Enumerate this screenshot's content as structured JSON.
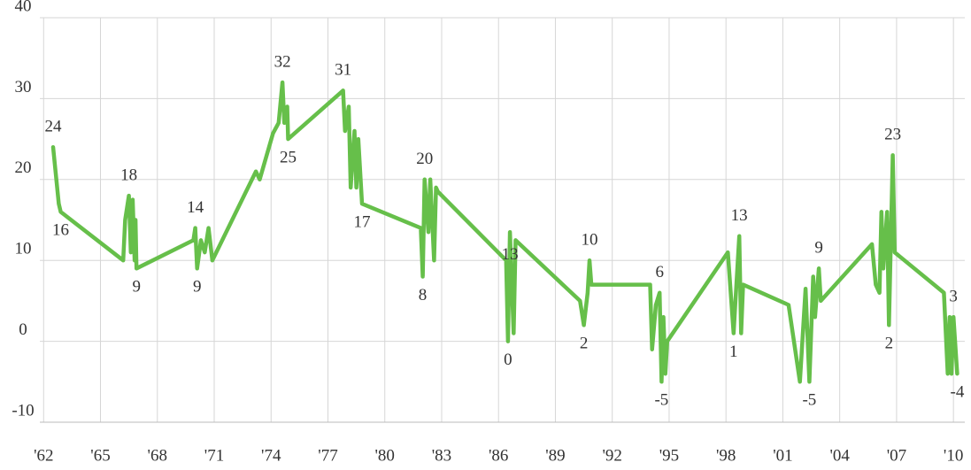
{
  "chart_data": {
    "type": "line",
    "color": "#66bf4a",
    "grid": true,
    "xlim": [
      1961.8,
      2010.6
    ],
    "ylim": [
      -10,
      40
    ],
    "yticks": [
      -10,
      0,
      10,
      20,
      30,
      40
    ],
    "xticks": [
      {
        "value": 1962,
        "label": "'62"
      },
      {
        "value": 1965,
        "label": "'65"
      },
      {
        "value": 1968,
        "label": "'68"
      },
      {
        "value": 1971,
        "label": "'71"
      },
      {
        "value": 1974,
        "label": "'74"
      },
      {
        "value": 1977,
        "label": "'77"
      },
      {
        "value": 1980,
        "label": "'80"
      },
      {
        "value": 1983,
        "label": "'83"
      },
      {
        "value": 1986,
        "label": "'86"
      },
      {
        "value": 1989,
        "label": "'89"
      },
      {
        "value": 1992,
        "label": "'92"
      },
      {
        "value": 1995,
        "label": "'95"
      },
      {
        "value": 1998,
        "label": "'98"
      },
      {
        "value": 2001,
        "label": "'01"
      },
      {
        "value": 2004,
        "label": "'04"
      },
      {
        "value": 2007,
        "label": "'07"
      },
      {
        "value": 2010,
        "label": "'10"
      }
    ],
    "x": [
      1962.5,
      1962.8,
      1962.9,
      1966.2,
      1966.3,
      1966.5,
      1966.6,
      1966.7,
      1966.8,
      1966.85,
      1966.9,
      1969.9,
      1970.0,
      1970.1,
      1970.3,
      1970.5,
      1970.7,
      1970.9,
      1973.2,
      1973.4,
      1974.1,
      1974.4,
      1974.6,
      1974.7,
      1974.85,
      1974.9,
      1977.8,
      1977.9,
      1978.1,
      1978.2,
      1978.4,
      1978.5,
      1978.6,
      1978.8,
      1981.9,
      1982.0,
      1982.1,
      1982.3,
      1982.4,
      1982.6,
      1982.7,
      1982.8,
      1986.4,
      1986.5,
      1986.6,
      1986.8,
      1986.9,
      1990.3,
      1990.5,
      1990.7,
      1990.8,
      1990.9,
      1994.0,
      1994.1,
      1994.3,
      1994.5,
      1994.6,
      1994.7,
      1994.8,
      1994.9,
      1998.1,
      1998.4,
      1998.5,
      1998.7,
      1998.8,
      1998.9,
      2001.3,
      2001.9,
      2002.2,
      2002.4,
      2002.6,
      2002.7,
      2002.9,
      2003.0,
      2005.7,
      2005.9,
      2006.1,
      2006.2,
      2006.3,
      2006.5,
      2006.6,
      2006.8,
      2006.9,
      2009.5,
      2009.7,
      2009.8,
      2009.9,
      2010.0,
      2010.2
    ],
    "values": [
      24,
      17,
      16,
      10,
      15,
      18,
      11,
      17.5,
      10,
      15,
      9,
      12.5,
      14,
      9,
      12.5,
      11,
      14,
      10,
      21,
      20,
      25.7,
      27,
      32,
      27,
      29,
      25,
      31,
      26,
      29,
      19,
      26,
      19,
      25,
      17,
      14,
      8,
      20,
      13.5,
      20,
      10,
      19,
      18.5,
      10,
      0,
      13.5,
      1,
      12.5,
      5,
      2,
      6,
      10,
      7,
      7,
      -1,
      4.5,
      6,
      -5,
      3,
      -4,
      0,
      11,
      1,
      5,
      13,
      1,
      7,
      4.5,
      -5,
      6.5,
      -5,
      8,
      3,
      9,
      5,
      12,
      7,
      6,
      16,
      9,
      16,
      2,
      23,
      11,
      6,
      -4,
      3,
      -4,
      3,
      -4
    ],
    "annotations": [
      {
        "x": 1962.5,
        "y": 24
      },
      {
        "x": 1962.9,
        "y": 16
      },
      {
        "x": 1966.5,
        "y": 18
      },
      {
        "x": 1966.9,
        "y": 9
      },
      {
        "x": 1970.0,
        "y": 14
      },
      {
        "x": 1970.1,
        "y": 9
      },
      {
        "x": 1974.6,
        "y": 32
      },
      {
        "x": 1974.9,
        "y": 25
      },
      {
        "x": 1977.8,
        "y": 31
      },
      {
        "x": 1978.8,
        "y": 17
      },
      {
        "x": 1982.1,
        "y": 20
      },
      {
        "x": 1982.0,
        "y": 8
      },
      {
        "x": 1986.6,
        "y": 13
      },
      {
        "x": 1986.5,
        "y": 0
      },
      {
        "x": 1990.8,
        "y": 10
      },
      {
        "x": 1990.5,
        "y": 2
      },
      {
        "x": 1994.5,
        "y": 6
      },
      {
        "x": 1994.6,
        "y": -5
      },
      {
        "x": 1998.7,
        "y": 13
      },
      {
        "x": 1998.4,
        "y": 1
      },
      {
        "x": 2002.9,
        "y": 9
      },
      {
        "x": 2002.4,
        "y": -5
      },
      {
        "x": 2006.8,
        "y": 23
      },
      {
        "x": 2006.6,
        "y": 2
      },
      {
        "x": 2010.0,
        "y": 3
      },
      {
        "x": 2010.2,
        "y": -4
      }
    ]
  }
}
